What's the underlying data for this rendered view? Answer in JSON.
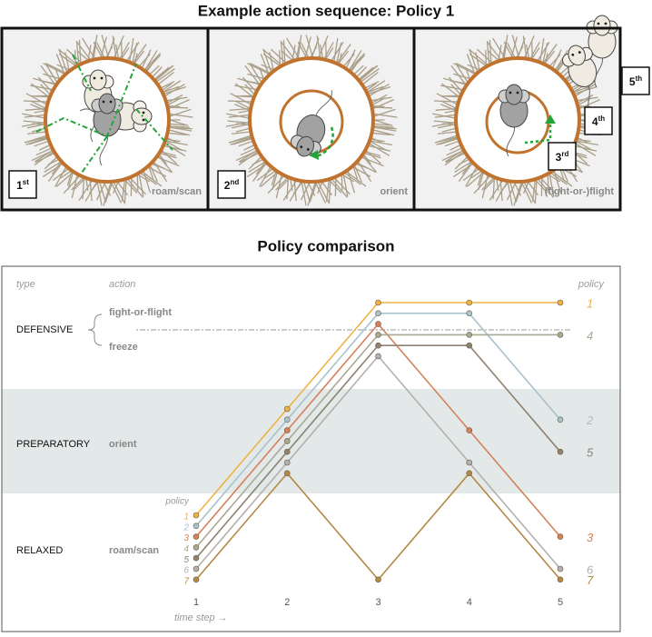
{
  "top_title": "Example action sequence: Policy 1",
  "panels": [
    {
      "caption": "roam/scan",
      "steps": [
        {
          "number": "1",
          "suffix": "st"
        }
      ]
    },
    {
      "caption": "orient",
      "steps": [
        {
          "number": "2",
          "suffix": "nd"
        }
      ]
    },
    {
      "caption": "(fight-or-)flight",
      "steps": [
        {
          "number": "3",
          "suffix": "rd"
        },
        {
          "number": "4",
          "suffix": "th"
        },
        {
          "number": "5",
          "suffix": "th"
        }
      ]
    }
  ],
  "chart_data": {
    "type": "line",
    "title": "Policy comparison",
    "column_headers": [
      "type",
      "action"
    ],
    "legend_title": "policy",
    "xlabel": "time step →",
    "x": [
      1,
      2,
      3,
      4,
      5
    ],
    "xlim": [
      1,
      5
    ],
    "xticks": [
      1,
      2,
      3,
      4,
      5
    ],
    "types": [
      {
        "name": "DEFENSIVE",
        "actions": [
          "fight-or-flight",
          "freeze"
        ]
      },
      {
        "name": "PREPARATORY",
        "actions": [
          "orient"
        ]
      },
      {
        "name": "RELAXED",
        "actions": [
          "roam/scan"
        ]
      }
    ],
    "series": [
      {
        "name": "1",
        "color": "#f0b245",
        "values": [
          "roam/scan",
          "orient",
          "fight-or-flight",
          "fight-or-flight",
          "fight-or-flight"
        ]
      },
      {
        "name": "2",
        "color": "#a9c2cc",
        "values": [
          "roam/scan",
          "orient",
          "fight-or-flight",
          "fight-or-flight",
          "orient"
        ]
      },
      {
        "name": "3",
        "color": "#d4825a",
        "values": [
          "roam/scan",
          "orient",
          "fight-or-flight",
          "orient",
          "roam/scan"
        ]
      },
      {
        "name": "4",
        "color": "#a9a993",
        "values": [
          "roam/scan",
          "orient",
          "freeze",
          "freeze",
          "freeze"
        ]
      },
      {
        "name": "5",
        "color": "#8f8270",
        "values": [
          "roam/scan",
          "orient",
          "freeze",
          "freeze",
          "orient"
        ]
      },
      {
        "name": "6",
        "color": "#b3b0ad",
        "values": [
          "roam/scan",
          "orient",
          "freeze",
          "orient",
          "roam/scan"
        ]
      },
      {
        "name": "7",
        "color": "#b38a45",
        "values": [
          "roam/scan",
          "orient",
          "roam/scan",
          "orient",
          "roam/scan"
        ]
      }
    ]
  }
}
